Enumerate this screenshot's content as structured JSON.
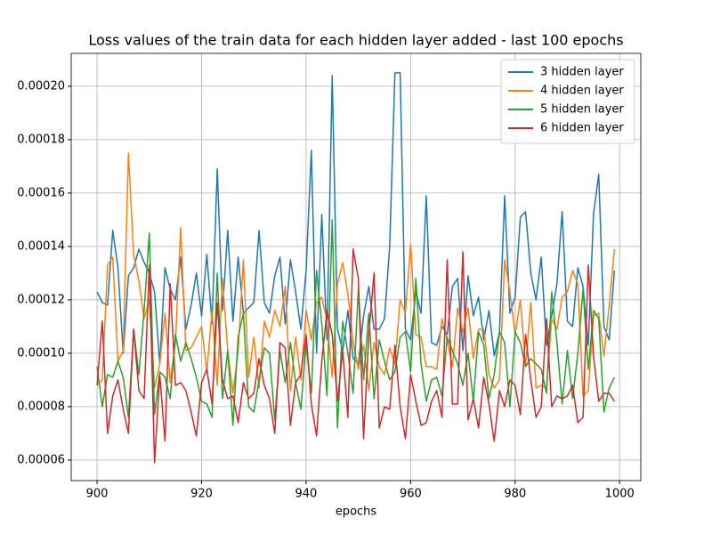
{
  "chart_data": {
    "type": "line",
    "title": "Loss values of the train data for each hidden layer added - last 100 epochs",
    "x_label": "epochs",
    "x": [
      900,
      901,
      902,
      903,
      904,
      905,
      906,
      907,
      908,
      909,
      910,
      911,
      912,
      913,
      914,
      915,
      916,
      917,
      918,
      919,
      920,
      921,
      922,
      923,
      924,
      925,
      926,
      927,
      928,
      929,
      930,
      931,
      932,
      933,
      934,
      935,
      936,
      937,
      938,
      939,
      940,
      941,
      942,
      943,
      944,
      945,
      946,
      947,
      948,
      949,
      950,
      951,
      952,
      953,
      954,
      955,
      956,
      957,
      958,
      959,
      960,
      961,
      962,
      963,
      964,
      965,
      966,
      967,
      968,
      969,
      970,
      971,
      972,
      973,
      974,
      975,
      976,
      977,
      978,
      979,
      980,
      981,
      982,
      983,
      984,
      985,
      986,
      987,
      988,
      989,
      990,
      991,
      992,
      993,
      994,
      995,
      996,
      997,
      998,
      999
    ],
    "xlim": [
      895.05,
      1004.05
    ],
    "xticks": [
      900,
      920,
      940,
      960,
      980,
      1000
    ],
    "ylim": [
      5.23e-05,
      0.0002123
    ],
    "yticks": [
      {
        "value": 6e-05,
        "label": "0.00006"
      },
      {
        "value": 8e-05,
        "label": "0.00008"
      },
      {
        "value": 0.0001,
        "label": "0.00010"
      },
      {
        "value": 0.00012,
        "label": "0.00012"
      },
      {
        "value": 0.00014,
        "label": "0.00014"
      },
      {
        "value": 0.00016,
        "label": "0.00016"
      },
      {
        "value": 0.00018,
        "label": "0.00018"
      },
      {
        "value": 0.0002,
        "label": "0.00020"
      }
    ],
    "grid": true,
    "legend": "upper right",
    "series": [
      {
        "name": "3 hidden layer",
        "color": "#1f77b4",
        "values": [
          0.000123,
          0.000119,
          0.000118,
          0.000146,
          0.000132,
          0.0001,
          0.000129,
          0.000132,
          0.000139,
          0.000134,
          0.00013,
          0.000123,
          9.6e-05,
          0.000132,
          0.000124,
          0.00012,
          0.000136,
          0.000109,
          0.000118,
          0.00013,
          0.000114,
          0.000137,
          0.000111,
          0.000169,
          0.000116,
          0.000146,
          0.000112,
          0.000136,
          0.000115,
          0.000117,
          0.000119,
          0.000146,
          0.000119,
          0.000115,
          0.000129,
          0.000136,
          0.000111,
          0.000135,
          0.000123,
          0.000109,
          0.000131,
          0.000176,
          0.0001,
          0.000152,
          0.000105,
          0.000204,
          0.000109,
          0.000101,
          0.000116,
          9.8e-05,
          9.6e-05,
          0.000114,
          0.000125,
          0.000109,
          0.000109,
          0.000113,
          0.00014,
          0.000205,
          0.000205,
          0.000109,
          0.000105,
          0.000123,
          0.000115,
          0.000159,
          0.000104,
          0.000103,
          0.00011,
          0.000107,
          0.000125,
          0.000128,
          0.000101,
          0.000129,
          0.000114,
          0.000121,
          0.000105,
          0.000116,
          9.9e-05,
          0.000108,
          0.000159,
          0.000115,
          0.000121,
          0.000151,
          0.000153,
          0.00013,
          0.00012,
          0.000136,
          0.000103,
          0.000114,
          0.000126,
          0.000153,
          0.000112,
          0.00011,
          0.000132,
          0.000125,
          0.000103,
          0.000152,
          0.000167,
          0.00011,
          0.000105,
          0.000131
        ]
      },
      {
        "name": "4 hidden layer",
        "color": "#ff7f0e",
        "values": [
          8.8e-05,
          9e-05,
          0.000133,
          0.000136,
          9.7e-05,
          0.000101,
          0.000175,
          0.000137,
          0.000127,
          0.000113,
          0.00012,
          8.7e-05,
          9.6e-05,
          0.000115,
          8.9e-05,
          0.000104,
          0.000147,
          0.000101,
          0.000102,
          0.000106,
          0.00011,
          9.3e-05,
          0.000116,
          8.8e-05,
          0.000128,
          0.000101,
          8.5e-05,
          0.000101,
          0.000135,
          9.1e-05,
          0.000106,
          8.7e-05,
          0.000112,
          0.000106,
          0.000116,
          0.00011,
          0.000125,
          8.6e-05,
          0.000106,
          9e-05,
          0.000116,
          0.000105,
          0.000119,
          0.000121,
          0.000112,
          9.1e-05,
          0.000126,
          0.000134,
          0.000122,
          0.000104,
          9.4e-05,
          0.000103,
          8.6e-05,
          0.000104,
          9.5e-05,
          9.2e-05,
          0.000102,
          9.6e-05,
          0.00012,
          0.000115,
          0.000141,
          0.000107,
          0.000106,
          9.5e-05,
          9.5e-05,
          9.4e-05,
          0.000113,
          0.000105,
          9.5e-05,
          0.000117,
          0.000108,
          0.000117,
          9.8e-05,
          0.000109,
          0.000109,
          9.2e-05,
          8.7e-05,
          9e-05,
          0.000135,
          0.000123,
          0.000107,
          0.00012,
          9.5e-05,
          0.000119,
          8.7e-05,
          8.8e-05,
          8.7e-05,
          0.000113,
          0.000109,
          0.000121,
          0.000123,
          0.000131,
          0.000126,
          8.4e-05,
          8.6e-05,
          0.000114,
          0.000115,
          9.9e-05,
          0.000118,
          0.000139
        ]
      },
      {
        "name": "5 hidden layer",
        "color": "#2ca02c",
        "values": [
          9.5e-05,
          8e-05,
          9.2e-05,
          9.1e-05,
          9.7e-05,
          9.1e-05,
          7.6e-05,
          0.000109,
          9.2e-05,
          0.000116,
          0.000145,
          7.7e-05,
          9.3e-05,
          9.1e-05,
          8.3e-05,
          0.000107,
          9.7e-05,
          0.000104,
          9.8e-05,
          9.1e-05,
          8.2e-05,
          8.1e-05,
          7.6e-05,
          0.00013,
          8.3e-05,
          0.000101,
          7.3e-05,
          0.000106,
          0.000115,
          8e-05,
          7.8e-05,
          9e-05,
          0.000102,
          0.0001,
          7.5e-05,
          0.000101,
          8.9e-05,
          0.000104,
          8.9e-05,
          7.9e-05,
          0.000104,
          8.5e-05,
          0.000131,
          0.000111,
          8.4e-05,
          0.00015,
          7.2e-05,
          0.000112,
          0.0001,
          8.5e-05,
          0.000124,
          9e-05,
          0.000115,
          8.3e-05,
          0.000105,
          9.7e-05,
          9e-05,
          9.3e-05,
          0.000106,
          0.000108,
          9.3e-05,
          0.000128,
          9.6e-05,
          8.2e-05,
          9e-05,
          9.1e-05,
          8.4e-05,
          0.000106,
          0.000101,
          9.6e-05,
          8.8e-05,
          0.0001,
          8.2e-05,
          0.000108,
          0.000103,
          8.3e-05,
          9.2e-05,
          0.000108,
          0.000104,
          8e-05,
          0.000108,
          0.000104,
          9.5e-05,
          9.8e-05,
          9.6e-05,
          9.4e-05,
          8.5e-05,
          0.000123,
          0.000104,
          8.1e-05,
          0.000101,
          8.3e-05,
          0.0001,
          0.000124,
          9.4e-05,
          0.000116,
          0.000113,
          7.8e-05,
          8.7e-05,
          9.1e-05
        ]
      },
      {
        "name": "6 hidden layer",
        "color": "#d62728",
        "values": [
          8.8e-05,
          0.000112,
          7e-05,
          8.4e-05,
          9e-05,
          7.9e-05,
          7e-05,
          0.000109,
          8.6e-05,
          8.3e-05,
          0.000133,
          5.9e-05,
          9.2e-05,
          6.7e-05,
          0.000126,
          8.8e-05,
          8.9e-05,
          8.6e-05,
          7.8e-05,
          6.9e-05,
          8.9e-05,
          9.4e-05,
          8.1e-05,
          0.000119,
          9e-05,
          8.3e-05,
          8.4e-05,
          7.4e-05,
          8.9e-05,
          8.3e-05,
          8.5e-05,
          9.8e-05,
          8.8e-05,
          8.3e-05,
          7e-05,
          0.000104,
          0.000102,
          7.3e-05,
          8.9e-05,
          9.2e-05,
          0.000107,
          8.1e-05,
          6.9e-05,
          9.7e-05,
          0.000116,
          0.000107,
          8.2e-05,
          0.000101,
          7.6e-05,
          0.000139,
          0.000128,
          6.8e-05,
          0.000107,
          0.00013,
          7.2e-05,
          8e-05,
          7.9e-05,
          0.000103,
          8e-05,
          6.8e-05,
          9.2e-05,
          8.2e-05,
          7.3e-05,
          7.4e-05,
          8.2e-05,
          8.6e-05,
          7.6e-05,
          0.000135,
          8.1e-05,
          8.1e-05,
          0.000138,
          7.5e-05,
          8.3e-05,
          7.2e-05,
          9.1e-05,
          8.1e-05,
          6.7e-05,
          8.6e-05,
          8e-05,
          9e-05,
          8.8e-05,
          7.7e-05,
          0.000107,
          9e-05,
          7.6e-05,
          8e-05,
          0.000113,
          8e-05,
          8.4e-05,
          8.3e-05,
          8.4e-05,
          8.8e-05,
          7.4e-05,
          7.6e-05,
          0.000133,
          9.9e-05,
          8.2e-05,
          8.5e-05,
          8.5e-05,
          8.2e-05
        ]
      }
    ]
  }
}
